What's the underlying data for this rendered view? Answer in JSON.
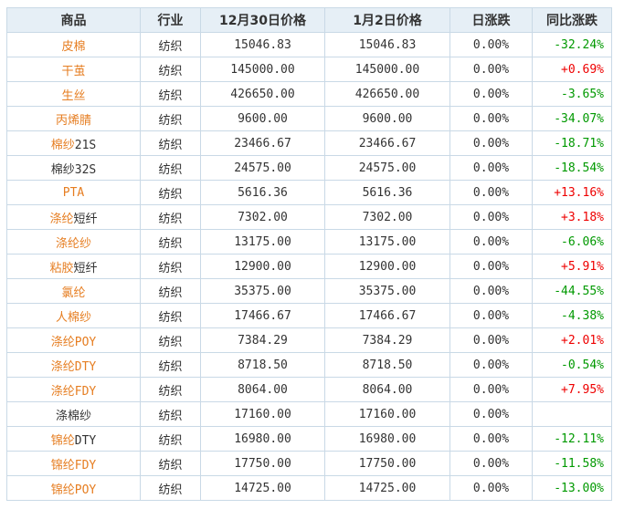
{
  "colors": {
    "link_orange": "#e67e22",
    "down_green": "#009900",
    "up_red": "#ee0000",
    "header_bg": "#e6eff6",
    "border": "#c9d9e6"
  },
  "table": {
    "headers": [
      "商品",
      "行业",
      "12月30日价格",
      "1月2日价格",
      "日涨跌",
      "同比涨跌"
    ],
    "rows": [
      {
        "name": "皮棉",
        "name_link": "皮棉",
        "name_rest": "",
        "industry": "纺织",
        "price_dec30": "15046.83",
        "price_jan2": "15046.83",
        "daily_change": "0.00%",
        "yoy_change": "-32.24%",
        "yoy_dir": "down"
      },
      {
        "name": "干茧",
        "name_link": "干茧",
        "name_rest": "",
        "industry": "纺织",
        "price_dec30": "145000.00",
        "price_jan2": "145000.00",
        "daily_change": "0.00%",
        "yoy_change": "+0.69%",
        "yoy_dir": "up"
      },
      {
        "name": "生丝",
        "name_link": "生丝",
        "name_rest": "",
        "industry": "纺织",
        "price_dec30": "426650.00",
        "price_jan2": "426650.00",
        "daily_change": "0.00%",
        "yoy_change": "-3.65%",
        "yoy_dir": "down"
      },
      {
        "name": "丙烯腈",
        "name_link": "丙烯腈",
        "name_rest": "",
        "industry": "纺织",
        "price_dec30": "9600.00",
        "price_jan2": "9600.00",
        "daily_change": "0.00%",
        "yoy_change": "-34.07%",
        "yoy_dir": "down"
      },
      {
        "name": "棉纱21S",
        "name_link": "棉纱",
        "name_rest": "21S",
        "industry": "纺织",
        "price_dec30": "23466.67",
        "price_jan2": "23466.67",
        "daily_change": "0.00%",
        "yoy_change": "-18.71%",
        "yoy_dir": "down"
      },
      {
        "name": "棉纱32S",
        "name_link": "",
        "name_rest": "棉纱32S",
        "industry": "纺织",
        "price_dec30": "24575.00",
        "price_jan2": "24575.00",
        "daily_change": "0.00%",
        "yoy_change": "-18.54%",
        "yoy_dir": "down"
      },
      {
        "name": "PTA",
        "name_link": "PTA",
        "name_rest": "",
        "industry": "纺织",
        "price_dec30": "5616.36",
        "price_jan2": "5616.36",
        "daily_change": "0.00%",
        "yoy_change": "+13.16%",
        "yoy_dir": "up"
      },
      {
        "name": "涤纶短纤",
        "name_link": "涤纶",
        "name_rest": "短纤",
        "industry": "纺织",
        "price_dec30": "7302.00",
        "price_jan2": "7302.00",
        "daily_change": "0.00%",
        "yoy_change": "+3.18%",
        "yoy_dir": "up"
      },
      {
        "name": "涤纶纱",
        "name_link": "涤纶纱",
        "name_rest": "",
        "industry": "纺织",
        "price_dec30": "13175.00",
        "price_jan2": "13175.00",
        "daily_change": "0.00%",
        "yoy_change": "-6.06%",
        "yoy_dir": "down"
      },
      {
        "name": "粘胶短纤",
        "name_link": "粘胶",
        "name_rest": "短纤",
        "industry": "纺织",
        "price_dec30": "12900.00",
        "price_jan2": "12900.00",
        "daily_change": "0.00%",
        "yoy_change": "+5.91%",
        "yoy_dir": "up"
      },
      {
        "name": "氯纶",
        "name_link": "氯纶",
        "name_rest": "",
        "industry": "纺织",
        "price_dec30": "35375.00",
        "price_jan2": "35375.00",
        "daily_change": "0.00%",
        "yoy_change": "-44.55%",
        "yoy_dir": "down"
      },
      {
        "name": "人棉纱",
        "name_link": "人棉纱",
        "name_rest": "",
        "industry": "纺织",
        "price_dec30": "17466.67",
        "price_jan2": "17466.67",
        "daily_change": "0.00%",
        "yoy_change": "-4.38%",
        "yoy_dir": "down"
      },
      {
        "name": "涤纶POY",
        "name_link": "涤纶POY",
        "name_rest": "",
        "industry": "纺织",
        "price_dec30": "7384.29",
        "price_jan2": "7384.29",
        "daily_change": "0.00%",
        "yoy_change": "+2.01%",
        "yoy_dir": "up"
      },
      {
        "name": "涤纶DTY",
        "name_link": "涤纶DTY",
        "name_rest": "",
        "industry": "纺织",
        "price_dec30": "8718.50",
        "price_jan2": "8718.50",
        "daily_change": "0.00%",
        "yoy_change": "-0.54%",
        "yoy_dir": "down"
      },
      {
        "name": "涤纶FDY",
        "name_link": "涤纶FDY",
        "name_rest": "",
        "industry": "纺织",
        "price_dec30": "8064.00",
        "price_jan2": "8064.00",
        "daily_change": "0.00%",
        "yoy_change": "+7.95%",
        "yoy_dir": "up"
      },
      {
        "name": "涤棉纱",
        "name_link": "",
        "name_rest": "涤棉纱",
        "industry": "纺织",
        "price_dec30": "17160.00",
        "price_jan2": "17160.00",
        "daily_change": "0.00%",
        "yoy_change": "",
        "yoy_dir": "none"
      },
      {
        "name": "锦纶DTY",
        "name_link": "锦纶",
        "name_rest": "DTY",
        "industry": "纺织",
        "price_dec30": "16980.00",
        "price_jan2": "16980.00",
        "daily_change": "0.00%",
        "yoy_change": "-12.11%",
        "yoy_dir": "down"
      },
      {
        "name": "锦纶FDY",
        "name_link": "锦纶FDY",
        "name_rest": "",
        "industry": "纺织",
        "price_dec30": "17750.00",
        "price_jan2": "17750.00",
        "daily_change": "0.00%",
        "yoy_change": "-11.58%",
        "yoy_dir": "down"
      },
      {
        "name": "锦纶POY",
        "name_link": "锦纶POY",
        "name_rest": "",
        "industry": "纺织",
        "price_dec30": "14725.00",
        "price_jan2": "14725.00",
        "daily_change": "0.00%",
        "yoy_change": "-13.00%",
        "yoy_dir": "down"
      }
    ]
  }
}
